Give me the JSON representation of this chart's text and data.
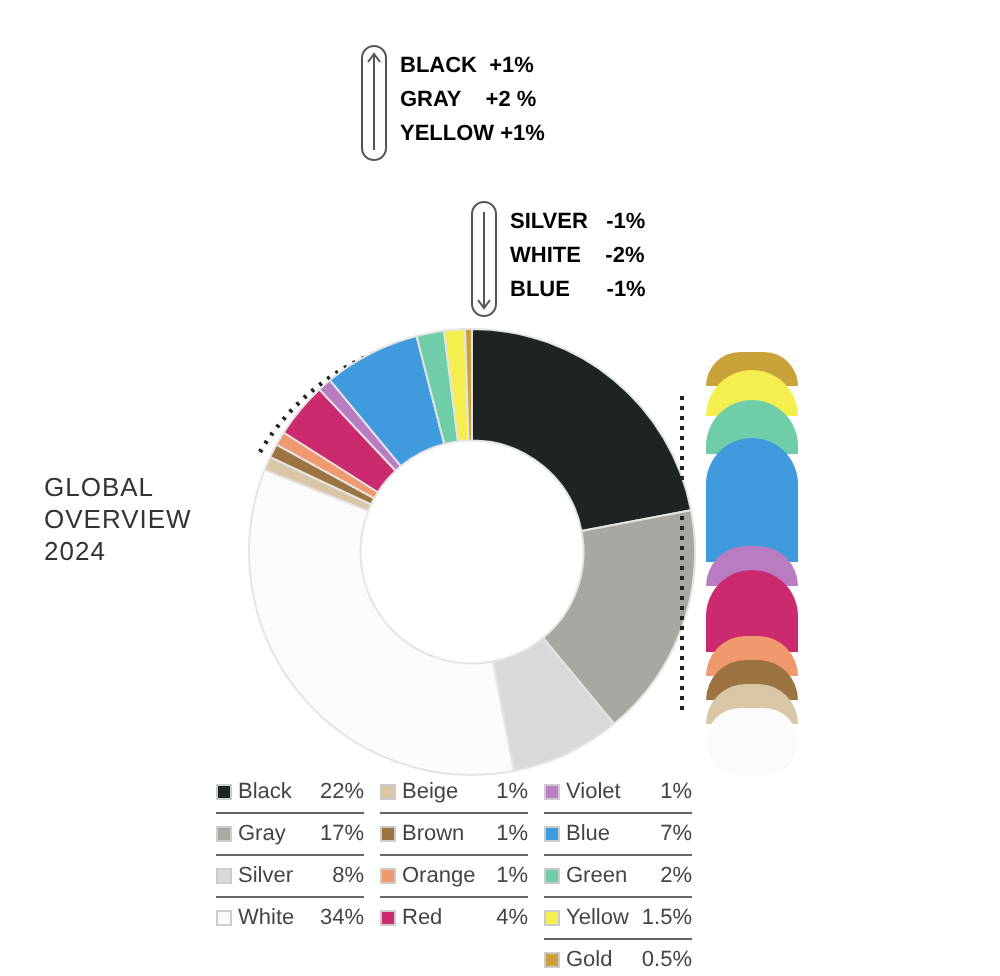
{
  "chart_data": {
    "type": "donut",
    "title": "GLOBAL\nOVERVIEW\n2024",
    "categories": [
      "Black",
      "Gray",
      "Silver",
      "White",
      "Beige",
      "Brown",
      "Orange",
      "Red",
      "Violet",
      "Blue",
      "Green",
      "Yellow",
      "Gold"
    ],
    "values": [
      22,
      17,
      8,
      34,
      1,
      1,
      1,
      4,
      1,
      7,
      2,
      1.5,
      0.5
    ],
    "value_labels": [
      "22%",
      "17%",
      "8%",
      "34%",
      "1%",
      "1%",
      "1%",
      "4%",
      "1%",
      "7%",
      "2%",
      "1.5%",
      "0.5%"
    ],
    "colors": [
      "#1e2324",
      "#a8a7a2",
      "#d9d9d9",
      "#fbfbfb",
      "#d9c6a5",
      "#9c7442",
      "#f0986e",
      "#cc2a6e",
      "#b77dc0",
      "#3f9ade",
      "#6fcea7",
      "#f4ee4f",
      "#c9a23a"
    ],
    "annotations": [
      "BLACK  +1%",
      "GRAY    +2 %",
      "YELLOW +1%",
      "SILVER   -1%",
      "WHITE    -2%",
      "BLUE      -1%"
    ],
    "legend": "bottom"
  }
}
